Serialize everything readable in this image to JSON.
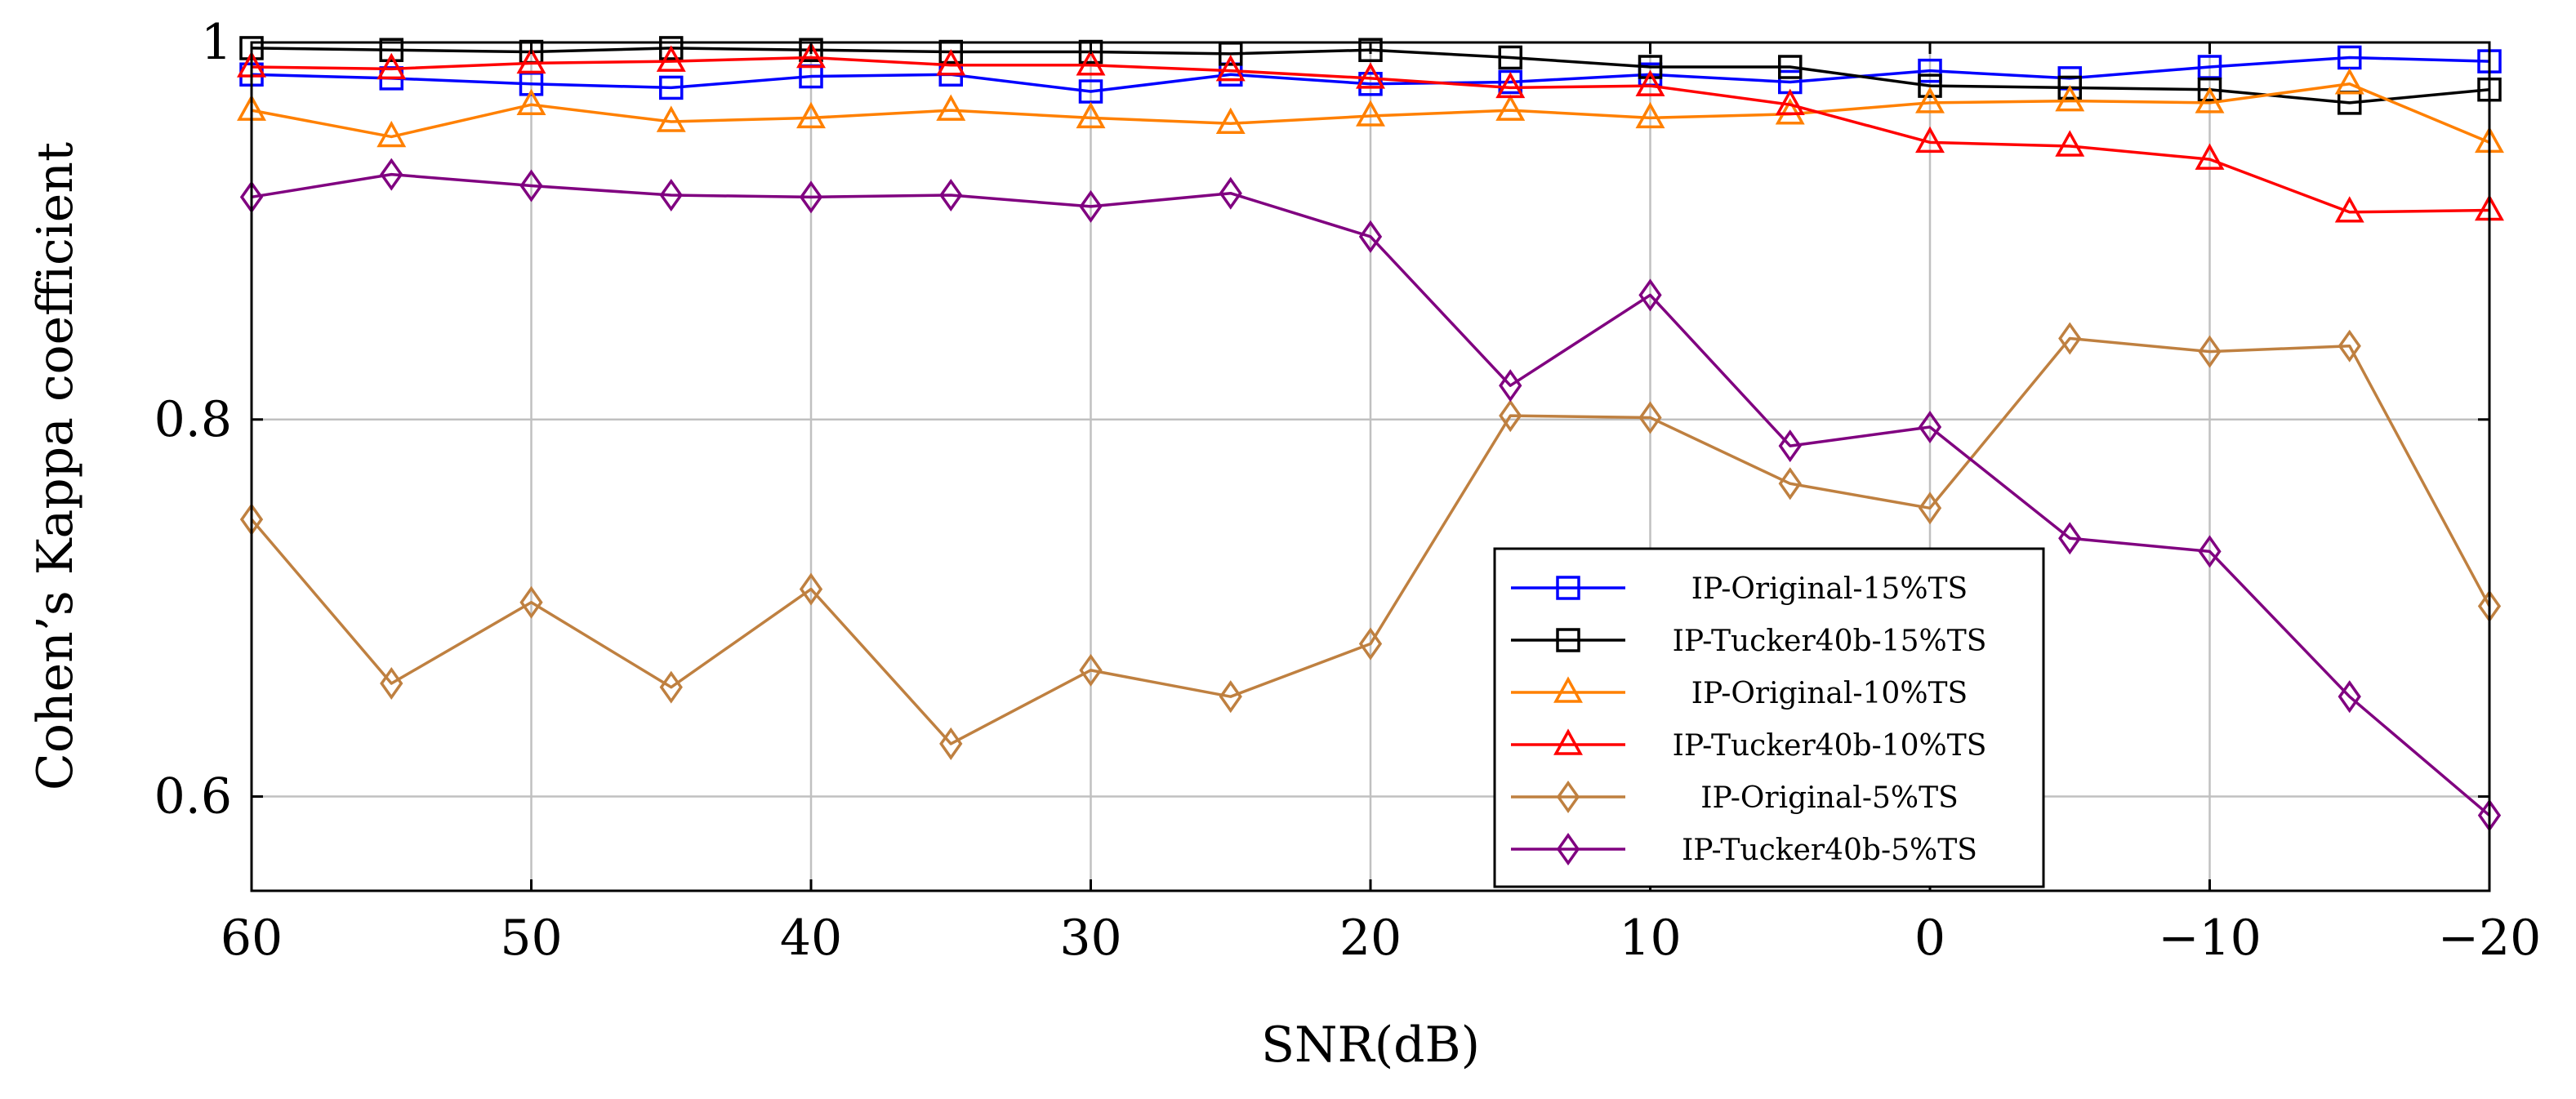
{
  "chart_data": {
    "type": "line",
    "title": "",
    "xlabel": "SNR(dB)",
    "ylabel": "Cohen’s Kappa coefficient",
    "x": [
      60,
      55,
      50,
      45,
      40,
      35,
      30,
      25,
      20,
      15,
      10,
      5,
      0,
      -5,
      -10,
      -15,
      -20
    ],
    "xlim": [
      60,
      -20
    ],
    "ylim": [
      0.55,
      1.0
    ],
    "xticks": [
      60,
      50,
      40,
      30,
      20,
      10,
      0,
      -10,
      -20
    ],
    "xtick_labels": [
      "60",
      "50",
      "40",
      "30",
      "20",
      "10",
      "0",
      "−10",
      "−20"
    ],
    "yticks": [
      0.6,
      0.8,
      1.0
    ],
    "ytick_labels": [
      "0.6",
      "0.8",
      "1"
    ],
    "grid": true,
    "legend_position": "center-right",
    "series": [
      {
        "name": "IP-Original-15%TS",
        "color": "#0000ff",
        "marker": "square",
        "values": [
          0.983,
          0.981,
          0.978,
          0.976,
          0.982,
          0.983,
          0.974,
          0.983,
          0.978,
          0.979,
          0.983,
          0.979,
          0.985,
          0.981,
          0.987,
          0.992,
          0.99
        ]
      },
      {
        "name": "IP-Tucker40b-15%TS",
        "color": "#000000",
        "marker": "square",
        "values": [
          0.997,
          0.996,
          0.995,
          0.997,
          0.996,
          0.995,
          0.995,
          0.994,
          0.996,
          0.992,
          0.987,
          0.987,
          0.977,
          0.976,
          0.975,
          0.968,
          0.975
        ]
      },
      {
        "name": "IP-Original-10%TS",
        "color": "#ff8000",
        "marker": "triangle",
        "values": [
          0.964,
          0.95,
          0.967,
          0.958,
          0.96,
          0.964,
          0.96,
          0.957,
          0.961,
          0.964,
          0.96,
          0.962,
          0.968,
          0.969,
          0.968,
          0.978,
          0.947
        ]
      },
      {
        "name": "IP-Tucker40b-10%TS",
        "color": "#ff0000",
        "marker": "triangle",
        "values": [
          0.987,
          0.986,
          0.989,
          0.99,
          0.992,
          0.988,
          0.988,
          0.985,
          0.981,
          0.976,
          0.977,
          0.967,
          0.947,
          0.945,
          0.938,
          0.91,
          0.911
        ]
      },
      {
        "name": "IP-Original-5%TS",
        "color": "#bf8040",
        "marker": "diamond",
        "values": [
          0.747,
          0.66,
          0.703,
          0.658,
          0.71,
          0.628,
          0.667,
          0.653,
          0.681,
          0.802,
          0.801,
          0.766,
          0.753,
          0.843,
          0.836,
          0.839,
          0.701
        ]
      },
      {
        "name": "IP-Tucker40b-5%TS",
        "color": "#800080",
        "marker": "diamond",
        "values": [
          0.918,
          0.93,
          0.924,
          0.919,
          0.918,
          0.919,
          0.913,
          0.92,
          0.897,
          0.818,
          0.866,
          0.786,
          0.796,
          0.737,
          0.73,
          0.653,
          0.59
        ]
      }
    ]
  }
}
